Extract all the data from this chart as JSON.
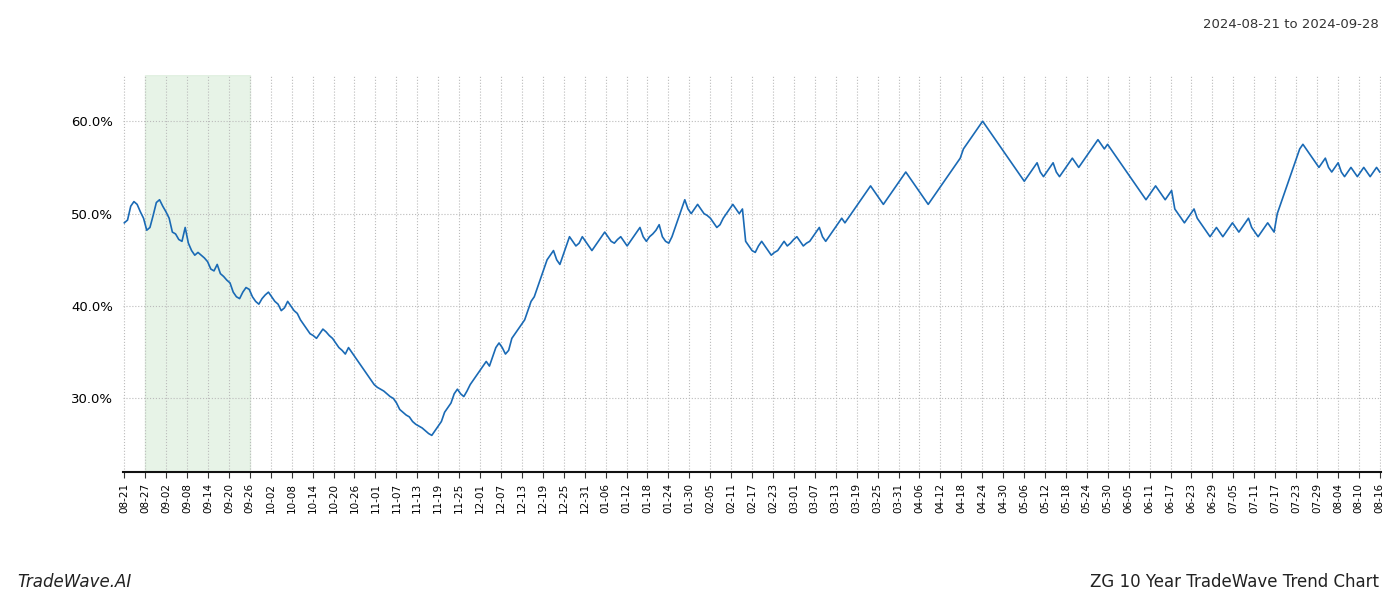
{
  "title_right": "2024-08-21 to 2024-09-28",
  "footer_left": "TradeWave.AI",
  "footer_right": "ZG 10 Year TradeWave Trend Chart",
  "line_color": "#1a6ab5",
  "line_width": 1.2,
  "shade_color": "#d4ead4",
  "shade_alpha": 0.55,
  "shade_label_start": "08-27",
  "shade_label_end": "09-26",
  "background_color": "#ffffff",
  "grid_color": "#bbbbbb",
  "grid_style": ":",
  "ylim_min": 22.0,
  "ylim_max": 65.0,
  "yticks": [
    30.0,
    40.0,
    50.0,
    60.0
  ],
  "x_labels": [
    "08-21",
    "08-27",
    "09-02",
    "09-08",
    "09-14",
    "09-20",
    "09-26",
    "10-02",
    "10-08",
    "10-14",
    "10-20",
    "10-26",
    "11-01",
    "11-07",
    "11-13",
    "11-19",
    "11-25",
    "12-01",
    "12-07",
    "12-13",
    "12-19",
    "12-25",
    "12-31",
    "01-06",
    "01-12",
    "01-18",
    "01-24",
    "01-30",
    "02-05",
    "02-11",
    "02-17",
    "02-23",
    "03-01",
    "03-07",
    "03-13",
    "03-19",
    "03-25",
    "03-31",
    "04-06",
    "04-12",
    "04-18",
    "04-24",
    "04-30",
    "05-06",
    "05-12",
    "05-18",
    "05-24",
    "05-30",
    "06-05",
    "06-11",
    "06-17",
    "06-23",
    "06-29",
    "07-05",
    "07-11",
    "07-17",
    "07-23",
    "07-29",
    "08-04",
    "08-10",
    "08-16"
  ],
  "y_values": [
    49.0,
    49.3,
    50.8,
    51.3,
    51.0,
    50.2,
    49.5,
    48.2,
    48.5,
    49.8,
    51.2,
    51.5,
    50.8,
    50.2,
    49.5,
    48.0,
    47.8,
    47.2,
    47.0,
    48.5,
    46.8,
    46.0,
    45.5,
    45.8,
    45.5,
    45.2,
    44.8,
    44.0,
    43.8,
    44.5,
    43.5,
    43.2,
    42.8,
    42.5,
    41.5,
    41.0,
    40.8,
    41.5,
    42.0,
    41.8,
    41.0,
    40.5,
    40.2,
    40.8,
    41.2,
    41.5,
    41.0,
    40.5,
    40.2,
    39.5,
    39.8,
    40.5,
    40.0,
    39.5,
    39.2,
    38.5,
    38.0,
    37.5,
    37.0,
    36.8,
    36.5,
    37.0,
    37.5,
    37.2,
    36.8,
    36.5,
    36.0,
    35.5,
    35.2,
    34.8,
    35.5,
    35.0,
    34.5,
    34.0,
    33.5,
    33.0,
    32.5,
    32.0,
    31.5,
    31.2,
    31.0,
    30.8,
    30.5,
    30.2,
    30.0,
    29.5,
    28.8,
    28.5,
    28.2,
    28.0,
    27.5,
    27.2,
    27.0,
    26.8,
    26.5,
    26.2,
    26.0,
    26.5,
    27.0,
    27.5,
    28.5,
    29.0,
    29.5,
    30.5,
    31.0,
    30.5,
    30.2,
    30.8,
    31.5,
    32.0,
    32.5,
    33.0,
    33.5,
    34.0,
    33.5,
    34.5,
    35.5,
    36.0,
    35.5,
    34.8,
    35.2,
    36.5,
    37.0,
    37.5,
    38.0,
    38.5,
    39.5,
    40.5,
    41.0,
    42.0,
    43.0,
    44.0,
    45.0,
    45.5,
    46.0,
    45.0,
    44.5,
    45.5,
    46.5,
    47.5,
    47.0,
    46.5,
    46.8,
    47.5,
    47.0,
    46.5,
    46.0,
    46.5,
    47.0,
    47.5,
    48.0,
    47.5,
    47.0,
    46.8,
    47.2,
    47.5,
    47.0,
    46.5,
    47.0,
    47.5,
    48.0,
    48.5,
    47.5,
    47.0,
    47.5,
    47.8,
    48.2,
    48.8,
    47.5,
    47.0,
    46.8,
    47.5,
    48.5,
    49.5,
    50.5,
    51.5,
    50.5,
    50.0,
    50.5,
    51.0,
    50.5,
    50.0,
    49.8,
    49.5,
    49.0,
    48.5,
    48.8,
    49.5,
    50.0,
    50.5,
    51.0,
    50.5,
    50.0,
    50.5,
    47.0,
    46.5,
    46.0,
    45.8,
    46.5,
    47.0,
    46.5,
    46.0,
    45.5,
    45.8,
    46.0,
    46.5,
    47.0,
    46.5,
    46.8,
    47.2,
    47.5,
    47.0,
    46.5,
    46.8,
    47.0,
    47.5,
    48.0,
    48.5,
    47.5,
    47.0,
    47.5,
    48.0,
    48.5,
    49.0,
    49.5,
    49.0,
    49.5,
    50.0,
    50.5,
    51.0,
    51.5,
    52.0,
    52.5,
    53.0,
    52.5,
    52.0,
    51.5,
    51.0,
    51.5,
    52.0,
    52.5,
    53.0,
    53.5,
    54.0,
    54.5,
    54.0,
    53.5,
    53.0,
    52.5,
    52.0,
    51.5,
    51.0,
    51.5,
    52.0,
    52.5,
    53.0,
    53.5,
    54.0,
    54.5,
    55.0,
    55.5,
    56.0,
    57.0,
    57.5,
    58.0,
    58.5,
    59.0,
    59.5,
    60.0,
    59.5,
    59.0,
    58.5,
    58.0,
    57.5,
    57.0,
    56.5,
    56.0,
    55.5,
    55.0,
    54.5,
    54.0,
    53.5,
    54.0,
    54.5,
    55.0,
    55.5,
    54.5,
    54.0,
    54.5,
    55.0,
    55.5,
    54.5,
    54.0,
    54.5,
    55.0,
    55.5,
    56.0,
    55.5,
    55.0,
    55.5,
    56.0,
    56.5,
    57.0,
    57.5,
    58.0,
    57.5,
    57.0,
    57.5,
    57.0,
    56.5,
    56.0,
    55.5,
    55.0,
    54.5,
    54.0,
    53.5,
    53.0,
    52.5,
    52.0,
    51.5,
    52.0,
    52.5,
    53.0,
    52.5,
    52.0,
    51.5,
    52.0,
    52.5,
    50.5,
    50.0,
    49.5,
    49.0,
    49.5,
    50.0,
    50.5,
    49.5,
    49.0,
    48.5,
    48.0,
    47.5,
    48.0,
    48.5,
    48.0,
    47.5,
    48.0,
    48.5,
    49.0,
    48.5,
    48.0,
    48.5,
    49.0,
    49.5,
    48.5,
    48.0,
    47.5,
    48.0,
    48.5,
    49.0,
    48.5,
    48.0,
    50.0,
    51.0,
    52.0,
    53.0,
    54.0,
    55.0,
    56.0,
    57.0,
    57.5,
    57.0,
    56.5,
    56.0,
    55.5,
    55.0,
    55.5,
    56.0,
    55.0,
    54.5,
    55.0,
    55.5,
    54.5,
    54.0,
    54.5,
    55.0,
    54.5,
    54.0,
    54.5,
    55.0,
    54.5,
    54.0,
    54.5,
    55.0,
    54.5
  ]
}
